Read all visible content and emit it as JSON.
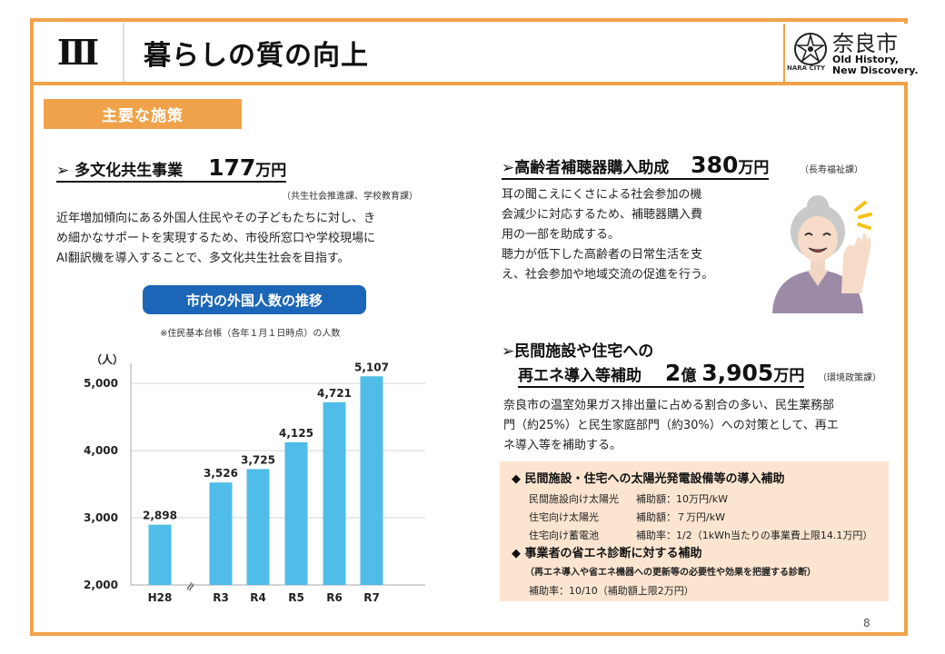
{
  "header": {
    "section_numeral": "Ⅲ",
    "title": "暮らしの質の向上",
    "logo_city": "奈良市",
    "logo_tagline_1": "Old History,",
    "logo_tagline_2": "New Discovery.",
    "logo_small": "NARA CITY"
  },
  "badge": "主要な施策",
  "left": {
    "title_prefix": "➢ 多文化共生事業",
    "amount": "177",
    "unit": "万円",
    "dept": "（共生社会推進課、学校教育課）",
    "para": [
      "近年増加傾向にある外国人住民やその子どもたちに対し、き",
      "め細かなサポートを実現するため、市役所窓口や学校現場に",
      "AI翻訳機を導入することで、多文化共生社会を目指す。"
    ],
    "chart_title": "市内の外国人数の推移",
    "chart_note": "※住民基本台帳（各年１月１日時点）の人数"
  },
  "chart_data": {
    "type": "bar",
    "categories": [
      "H28",
      "R3",
      "R4",
      "R5",
      "R6",
      "R7"
    ],
    "values": [
      2898,
      3526,
      3725,
      4125,
      4721,
      5107
    ],
    "value_labels": [
      "2,898",
      "3,526",
      "3,725",
      "4,125",
      "4,721",
      "5,107"
    ],
    "ylabel": "（人）",
    "ylim": [
      2000,
      5300
    ],
    "yticks": [
      "2,000",
      "3,000",
      "4,000",
      "5,000"
    ],
    "ytick_values": [
      2000,
      3000,
      4000,
      5000
    ],
    "axis_break": "≈",
    "bar_color": "#4fbde8"
  },
  "right_top": {
    "title_prefix": "➢高齢者補聴器購入助成",
    "amount": "380",
    "unit": "万円",
    "dept": "（長寿福祉課）",
    "para": [
      "耳の聞こえにくさによる社会参加の機",
      "会減少に対応するため、補聴器購入費",
      "用の一部を助成する。",
      "聴力が低下した高齢者の日常生活を支",
      "え、社会参加や地域交流の促進を行う。"
    ]
  },
  "right_bottom": {
    "title_line1": "➢民間施設や住宅への",
    "title_line2": "再エネ導入等補助",
    "amount_a": "2",
    "unit_a": "億",
    "amount_b": "3,905",
    "unit_b": "万円",
    "dept": "（環境政策課）",
    "para": [
      "奈良市の温室効果ガス排出量に占める割合の多い、民生業務部",
      "門（約25%）と民生家庭部門（約30%）への対策として、再エ",
      "ネ導入等を補助する。"
    ],
    "box": {
      "item1": "◆ 民間施設・住宅への太陽光発電設備等の導入補助",
      "rows": [
        {
          "a": "民間施設向け太陽光",
          "b": "補助額：10万円/kW"
        },
        {
          "a": "住宅向け太陽光",
          "b": "補助額：７万円/kW"
        },
        {
          "a": "住宅向け蓄電池",
          "b": "補助率：1/2（1kWh当たりの事業費上限14.1万円）"
        }
      ],
      "item2": "◆ 事業者の省エネ診断に対する補助",
      "item2_note": "（再エネ導入や省エネ機器への更新等の必要性や効果を把握する診断）",
      "item2_rate": "補助率：10/10（補助額上限2万円）"
    }
  },
  "page_number": "8",
  "colors": {
    "accent": "#f0a24a",
    "pill": "#1c66b8",
    "peach": "#fbe5d1",
    "bar": "#4fbde8"
  }
}
